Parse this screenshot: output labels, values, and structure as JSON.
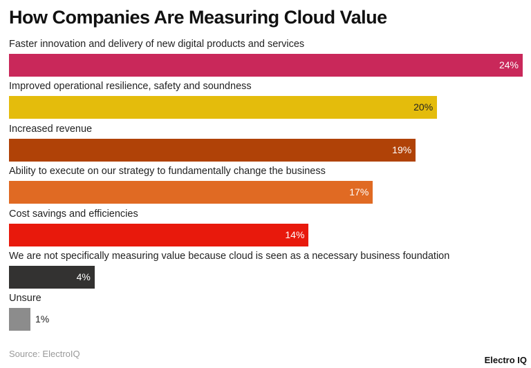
{
  "chart_data": {
    "type": "bar",
    "orientation": "horizontal",
    "title": "How Companies Are Measuring Cloud Value",
    "categories": [
      "Faster innovation and delivery of new digital products and services",
      "Improved operational resilience, safety and soundness",
      "Increased revenue",
      "Ability to execute on our strategy to fundamentally change the business",
      "Cost savings and efficiencies",
      "We are not specifically measuring value because cloud is seen as a necessary business foundation",
      "Unsure"
    ],
    "values": [
      24,
      20,
      19,
      17,
      14,
      4,
      1
    ],
    "data_labels": [
      "24%",
      "20%",
      "19%",
      "17%",
      "14%",
      "4%",
      "1%"
    ],
    "colors": [
      "#C9285A",
      "#E4BC0C",
      "#B04207",
      "#E06A23",
      "#E8190C",
      "#333231",
      "#8C8C8C"
    ],
    "label_colors": [
      "#ffffff",
      "#222222",
      "#ffffff",
      "#ffffff",
      "#ffffff",
      "#ffffff",
      "#222222"
    ],
    "xlim": [
      0,
      24
    ],
    "grid": false
  },
  "source": "Source: ElectroIQ",
  "logo": "Electro IQ"
}
